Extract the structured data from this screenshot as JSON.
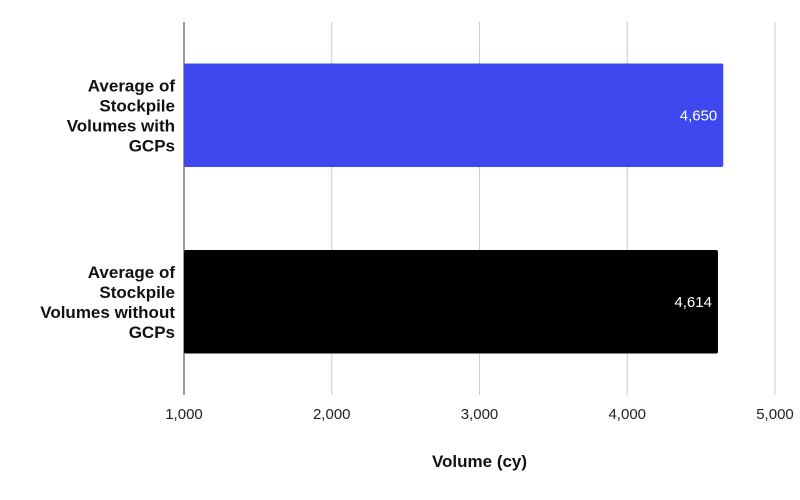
{
  "chart_data": {
    "type": "bar",
    "orientation": "horizontal",
    "categories": [
      [
        "Average of",
        "Stockpile",
        "Volumes with",
        "GCPs"
      ],
      [
        "Average of",
        "Stockpile",
        "Volumes without",
        "GCPs"
      ]
    ],
    "values": [
      4650,
      4614
    ],
    "data_labels": [
      "4,650",
      "4,614"
    ],
    "bar_colors": [
      "#3d48ee",
      "#000000"
    ],
    "title": "",
    "xlabel": "Volume (cy)",
    "ylabel": "",
    "xlim": [
      1000,
      5000
    ],
    "xticks": [
      1000,
      2000,
      3000,
      4000,
      5000
    ],
    "xtick_labels": [
      "1,000",
      "2,000",
      "3,000",
      "4,000",
      "5,000"
    ],
    "grid": "vertical",
    "grid_color": "#cccccc",
    "legend": "none"
  }
}
